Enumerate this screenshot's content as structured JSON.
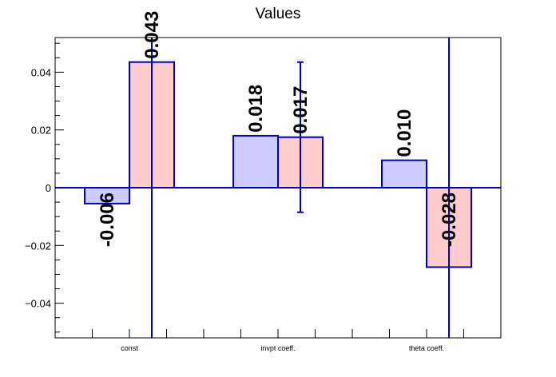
{
  "chart_data": {
    "type": "bar",
    "title": "Values",
    "xlabel": "",
    "ylabel": "",
    "ylim": [
      -0.052,
      0.052
    ],
    "grid": false,
    "categories": [
      "const",
      "invpt coeff.",
      "theta coeff."
    ],
    "series": [
      {
        "values": [
          -0.0055,
          0.018,
          0.0095
        ],
        "labels": [
          "-0.006",
          "0.018",
          "0.010"
        ],
        "fill": "#ccccff",
        "stroke": "#0000cc"
      },
      {
        "values": [
          0.0435,
          0.0175,
          -0.0275
        ],
        "labels": [
          "0.043",
          "0.017",
          "-0.028"
        ],
        "fill": "#ffcccc",
        "stroke": "#0000cc",
        "error_low": [
          -0.052,
          -0.0085,
          -0.052
        ],
        "error_high": [
          0.052,
          0.0435,
          0.052
        ]
      }
    ],
    "yticks": [
      {
        "value": 0.04,
        "label": "0.04"
      },
      {
        "value": 0.02,
        "label": "0.02"
      },
      {
        "value": 0,
        "label": "0"
      },
      {
        "value": -0.02,
        "label": "−0.02"
      },
      {
        "value": -0.04,
        "label": "−0.04"
      }
    ]
  }
}
